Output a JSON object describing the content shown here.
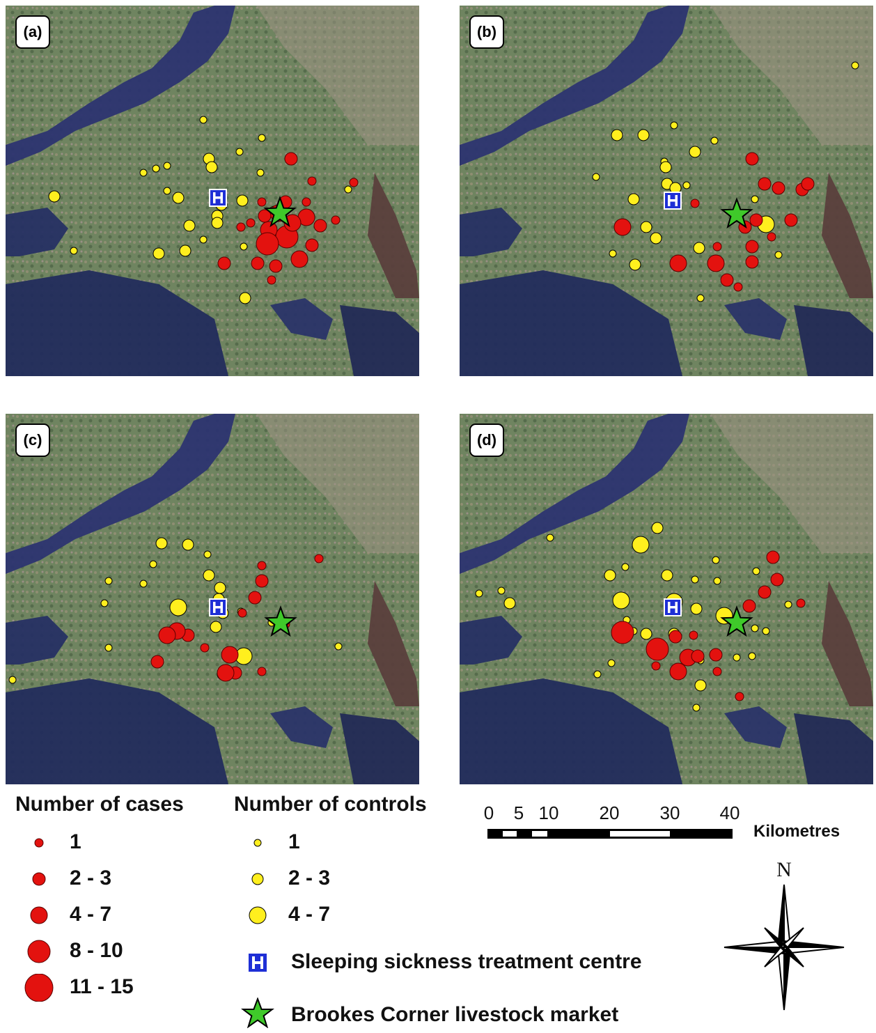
{
  "panels": [
    {
      "label": "(a)",
      "cases": [
        [
          418,
          228,
          2
        ],
        [
          508,
          262,
          1
        ],
        [
          346,
          326,
          1
        ],
        [
          386,
          330,
          3
        ],
        [
          412,
          340,
          4
        ],
        [
          430,
          372,
          3
        ],
        [
          396,
          382,
          2
        ],
        [
          390,
          402,
          1
        ],
        [
          370,
          378,
          2
        ],
        [
          322,
          378,
          2
        ],
        [
          448,
          352,
          2
        ],
        [
          482,
          316,
          1
        ],
        [
          460,
          324,
          2
        ],
        [
          440,
          312,
          3
        ],
        [
          420,
          320,
          3
        ],
        [
          400,
          306,
          3
        ],
        [
          380,
          310,
          2
        ],
        [
          384,
          350,
          4
        ],
        [
          440,
          290,
          1
        ],
        [
          410,
          290,
          2
        ],
        [
          360,
          320,
          1
        ],
        [
          376,
          290,
          1
        ],
        [
          448,
          260,
          1
        ]
      ],
      "controls": [
        [
          292,
          172,
          1
        ],
        [
          376,
          198,
          1
        ],
        [
          344,
          218,
          1
        ],
        [
          300,
          228,
          2
        ],
        [
          224,
          242,
          1
        ],
        [
          240,
          238,
          1
        ],
        [
          206,
          248,
          1
        ],
        [
          304,
          240,
          2
        ],
        [
          374,
          248,
          1
        ],
        [
          240,
          274,
          1
        ],
        [
          256,
          284,
          2
        ],
        [
          78,
          282,
          2
        ],
        [
          348,
          288,
          2
        ],
        [
          318,
          294,
          2
        ],
        [
          312,
          310,
          2
        ],
        [
          312,
          320,
          2
        ],
        [
          272,
          324,
          2
        ],
        [
          292,
          344,
          1
        ],
        [
          350,
          354,
          1
        ],
        [
          228,
          364,
          2
        ],
        [
          266,
          360,
          2
        ],
        [
          106,
          360,
          1
        ],
        [
          322,
          378,
          2
        ],
        [
          374,
          378,
          1
        ],
        [
          352,
          428,
          2
        ],
        [
          500,
          272,
          1
        ],
        [
          394,
          304,
          2
        ]
      ],
      "hospital": [
        313,
        284
      ],
      "star": [
        402,
        306
      ]
    },
    {
      "label": "(b)",
      "cases": [
        [
          1080,
          228,
          2
        ],
        [
          1098,
          264,
          2
        ],
        [
          1118,
          270,
          2
        ],
        [
          1152,
          272,
          2
        ],
        [
          1160,
          264,
          2
        ],
        [
          1136,
          316,
          2
        ],
        [
          1108,
          340,
          1
        ],
        [
          1086,
          316,
          2
        ],
        [
          1070,
          326,
          2
        ],
        [
          1030,
          354,
          1
        ],
        [
          1028,
          378,
          3
        ],
        [
          1044,
          402,
          2
        ],
        [
          1060,
          412,
          1
        ],
        [
          1080,
          354,
          2
        ],
        [
          1080,
          376,
          2
        ],
        [
          974,
          378,
          3
        ],
        [
          894,
          326,
          3
        ],
        [
          998,
          292,
          1
        ]
      ],
      "controls": [
        [
          1228,
          94,
          1
        ],
        [
          886,
          194,
          2
        ],
        [
          924,
          194,
          2
        ],
        [
          968,
          180,
          1
        ],
        [
          1026,
          202,
          1
        ],
        [
          998,
          218,
          2
        ],
        [
          954,
          232,
          1
        ],
        [
          956,
          240,
          2
        ],
        [
          958,
          264,
          2
        ],
        [
          970,
          270,
          2
        ],
        [
          986,
          266,
          1
        ],
        [
          856,
          254,
          1
        ],
        [
          910,
          286,
          2
        ],
        [
          928,
          326,
          2
        ],
        [
          942,
          342,
          2
        ],
        [
          880,
          364,
          1
        ],
        [
          912,
          380,
          2
        ],
        [
          1004,
          356,
          2
        ],
        [
          1100,
          322,
          3
        ],
        [
          1084,
          286,
          1
        ],
        [
          1080,
          354,
          1
        ],
        [
          1118,
          366,
          1
        ],
        [
          1006,
          428,
          1
        ]
      ],
      "hospital": [
        966,
        288
      ],
      "star": [
        1058,
        308
      ]
    },
    {
      "label": "(c)",
      "cases": [
        [
          458,
          802,
          1
        ],
        [
          376,
          812,
          1
        ],
        [
          376,
          834,
          2
        ],
        [
          366,
          858,
          2
        ],
        [
          348,
          880,
          1
        ],
        [
          410,
          896,
          1
        ],
        [
          270,
          912,
          2
        ],
        [
          254,
          906,
          3
        ],
        [
          240,
          912,
          3
        ],
        [
          294,
          930,
          1
        ],
        [
          330,
          940,
          3
        ],
        [
          226,
          950,
          2
        ],
        [
          338,
          966,
          2
        ],
        [
          324,
          966,
          3
        ],
        [
          376,
          964,
          1
        ]
      ],
      "controls": [
        [
          232,
          780,
          2
        ],
        [
          270,
          782,
          2
        ],
        [
          298,
          796,
          1
        ],
        [
          220,
          810,
          1
        ],
        [
          206,
          838,
          1
        ],
        [
          156,
          834,
          1
        ],
        [
          300,
          826,
          2
        ],
        [
          316,
          844,
          2
        ],
        [
          314,
          860,
          2
        ],
        [
          256,
          872,
          3
        ],
        [
          320,
          880,
          2
        ],
        [
          346,
          878,
          1
        ],
        [
          150,
          866,
          1
        ],
        [
          310,
          900,
          2
        ],
        [
          350,
          942,
          3
        ],
        [
          156,
          930,
          1
        ],
        [
          18,
          976,
          1
        ],
        [
          486,
          928,
          1
        ],
        [
          320,
          968,
          2
        ],
        [
          390,
          894,
          1
        ]
      ],
      "hospital": [
        313,
        872
      ],
      "star": [
        403,
        894
      ]
    },
    {
      "label": "(d)",
      "cases": [
        [
          1110,
          800,
          2
        ],
        [
          1116,
          832,
          2
        ],
        [
          1098,
          850,
          2
        ],
        [
          1076,
          870,
          2
        ],
        [
          1150,
          866,
          1
        ],
        [
          894,
          908,
          4
        ],
        [
          944,
          932,
          4
        ],
        [
          970,
          914,
          2
        ],
        [
          988,
          944,
          3
        ],
        [
          974,
          964,
          3
        ],
        [
          1002,
          942,
          2
        ],
        [
          1028,
          940,
          2
        ],
        [
          1030,
          964,
          1
        ],
        [
          942,
          956,
          1
        ],
        [
          996,
          912,
          1
        ],
        [
          1062,
          1000,
          1
        ]
      ],
      "controls": [
        [
          790,
          772,
          1
        ],
        [
          920,
          782,
          3
        ],
        [
          944,
          758,
          2
        ],
        [
          876,
          826,
          2
        ],
        [
          898,
          814,
          1
        ],
        [
          958,
          826,
          2
        ],
        [
          998,
          832,
          1
        ],
        [
          1028,
          804,
          1
        ],
        [
          1030,
          834,
          1
        ],
        [
          1086,
          820,
          1
        ],
        [
          1132,
          868,
          1
        ],
        [
          688,
          852,
          1
        ],
        [
          720,
          848,
          1
        ],
        [
          732,
          866,
          2
        ],
        [
          892,
          862,
          3
        ],
        [
          968,
          864,
          3
        ],
        [
          1000,
          874,
          2
        ],
        [
          1040,
          884,
          3
        ],
        [
          1084,
          902,
          1
        ],
        [
          1100,
          906,
          1
        ],
        [
          928,
          910,
          2
        ],
        [
          910,
          906,
          1
        ],
        [
          900,
          890,
          1
        ],
        [
          946,
          932,
          2
        ],
        [
          968,
          910,
          2
        ],
        [
          1006,
          948,
          1
        ],
        [
          984,
          940,
          1
        ],
        [
          976,
          966,
          1
        ],
        [
          1058,
          944,
          1
        ],
        [
          1080,
          942,
          1
        ],
        [
          878,
          952,
          1
        ],
        [
          858,
          968,
          1
        ],
        [
          1062,
          1000,
          1
        ],
        [
          1006,
          984,
          2
        ],
        [
          1000,
          1016,
          1
        ]
      ],
      "hospital": [
        966,
        872
      ],
      "star": [
        1058,
        894
      ]
    }
  ],
  "legend": {
    "cases_title": "Number of cases",
    "controls_title": "Number of controls",
    "cases_bins": [
      "1",
      "2 - 3",
      "4 - 7",
      "8 - 10",
      "11 - 15"
    ],
    "controls_bins": [
      "1",
      "2 - 3",
      "4 - 7"
    ],
    "hospital_label": "Sleeping sickness treatment centre",
    "hospital_glyph": "H",
    "star_label": "Brookes Corner livestock market"
  },
  "scale_bar": {
    "ticks": [
      "0",
      "5",
      "10",
      "20",
      "30",
      "40"
    ],
    "values_km": [
      0,
      5,
      10,
      20,
      30,
      40
    ],
    "unit": "Kilometres"
  },
  "north_label": "N",
  "colors": {
    "case_red": "#e3120f",
    "control_yellow": "#ffef1e",
    "star_green": "#3fc92a",
    "hospital_blue": "#1e2fd6",
    "water": "#24305f",
    "land": "#6b7f5e"
  },
  "icons": {
    "hospital": "hospital-icon",
    "market": "star-icon",
    "compass": "compass-rose-icon"
  }
}
